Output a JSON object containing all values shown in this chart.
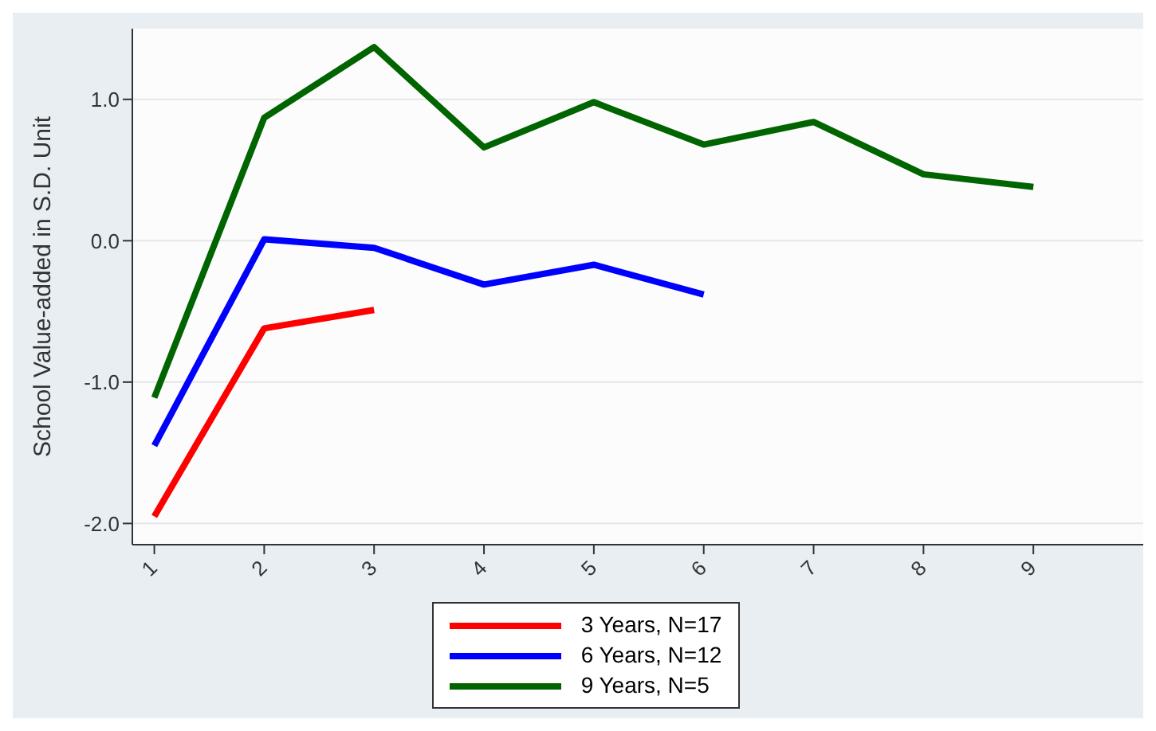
{
  "chart_data": {
    "type": "line",
    "ylabel": "School Value-added in S.D. Unit",
    "x": [
      1,
      2,
      3,
      4,
      5,
      6,
      7,
      8,
      9
    ],
    "series": [
      {
        "name": "3 Years, N=17",
        "color": "#ff0000",
        "values": [
          -1.95,
          -0.62,
          -0.49,
          null,
          null,
          null,
          null,
          null,
          null
        ]
      },
      {
        "name": "6 Years, N=12",
        "color": "#0000ff",
        "values": [
          -1.45,
          0.01,
          -0.05,
          -0.31,
          -0.17,
          -0.38,
          null,
          null,
          null
        ]
      },
      {
        "name": "9 Years, N=5",
        "color": "#006400",
        "values": [
          -1.11,
          0.87,
          1.37,
          0.66,
          0.98,
          0.68,
          0.84,
          0.47,
          0.38
        ]
      }
    ],
    "xlim": [
      0.8,
      10
    ],
    "xticks": [
      1,
      2,
      3,
      4,
      5,
      6,
      7,
      8,
      9
    ],
    "ylim": [
      -2.15,
      1.5
    ],
    "yticks": [
      {
        "value": -2,
        "label": "-2.0"
      },
      {
        "value": -1,
        "label": "-1.0"
      },
      {
        "value": 0,
        "label": "0.0"
      },
      {
        "value": 1,
        "label": "1.0"
      }
    ],
    "grid": "y",
    "legend": "bottom",
    "marker": "none",
    "line_style": "solid"
  }
}
